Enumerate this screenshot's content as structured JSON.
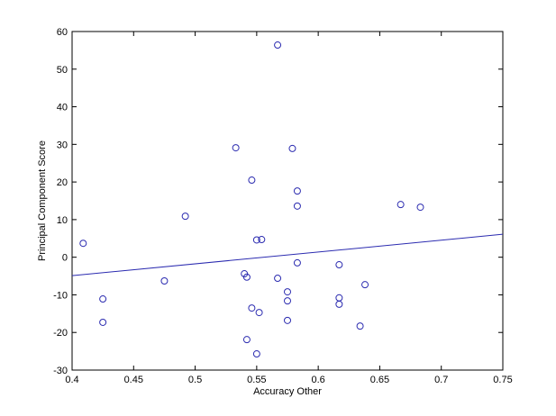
{
  "chart_data": {
    "type": "scatter",
    "xlabel": "Accuracy Other",
    "ylabel": "Principal Component Score",
    "xlim": [
      0.4,
      0.75
    ],
    "xticks": [
      0.4,
      0.45,
      0.5,
      0.55,
      0.6,
      0.65,
      0.7,
      0.75
    ],
    "ylim": [
      -30,
      60
    ],
    "yticks": [
      -30,
      -20,
      -10,
      0,
      10,
      20,
      30,
      40,
      50,
      60
    ],
    "grid": false,
    "series": [
      {
        "type": "scatter",
        "color": "#2b2bb0",
        "x": [
          0.409,
          0.425,
          0.425,
          0.475,
          0.492,
          0.533,
          0.546,
          0.567,
          0.579,
          0.583,
          0.583,
          0.55,
          0.554,
          0.583,
          0.54,
          0.542,
          0.567,
          0.575,
          0.575,
          0.546,
          0.552,
          0.575,
          0.542,
          0.55,
          0.617,
          0.617,
          0.617,
          0.638,
          0.634,
          0.667,
          0.683
        ],
        "values": [
          3.7,
          -11.1,
          -17.3,
          -6.3,
          10.9,
          29.1,
          20.5,
          56.4,
          28.9,
          17.6,
          13.6,
          4.6,
          4.7,
          -1.5,
          -4.4,
          -5.3,
          -5.6,
          -9.2,
          -11.6,
          -13.5,
          -14.7,
          -16.8,
          -21.9,
          -25.7,
          -2.0,
          -10.8,
          -12.5,
          -7.3,
          -18.3,
          14.0,
          13.3
        ]
      },
      {
        "type": "line",
        "color": "#2b2bb0",
        "x": [
          0.4,
          0.75
        ],
        "values": [
          -4.9,
          6.1
        ]
      }
    ]
  }
}
